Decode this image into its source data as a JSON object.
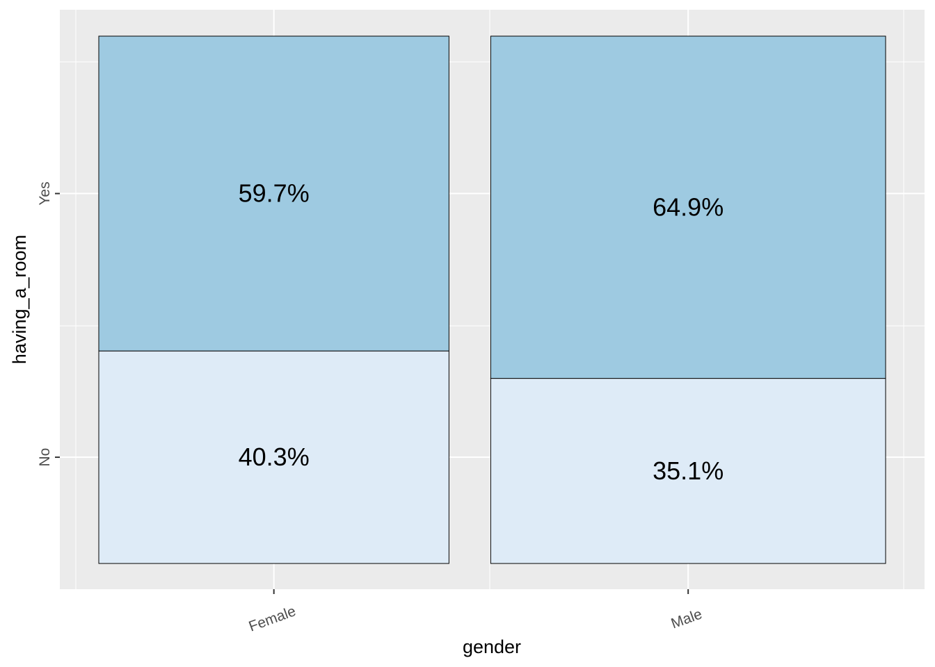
{
  "chart_data": {
    "type": "bar",
    "subtype": "mosaic",
    "xlabel": "gender",
    "ylabel": "having_a_room",
    "categories": [
      "Female",
      "Male"
    ],
    "category_widths": [
      0.47,
      0.53
    ],
    "y_levels": [
      "No",
      "Yes"
    ],
    "series": [
      {
        "name": "No",
        "values": [
          40.3,
          35.1
        ],
        "labels": [
          "40.3%",
          "35.1%"
        ]
      },
      {
        "name": "Yes",
        "values": [
          59.7,
          64.9
        ],
        "labels": [
          "59.7%",
          "64.9%"
        ]
      }
    ],
    "ylim": [
      0,
      100
    ],
    "grid": true,
    "legend": "none",
    "colors": {
      "Yes": "#9ecae1",
      "No": "#deebf7",
      "panel": "#ebebeb",
      "grid": "#ffffff"
    }
  }
}
